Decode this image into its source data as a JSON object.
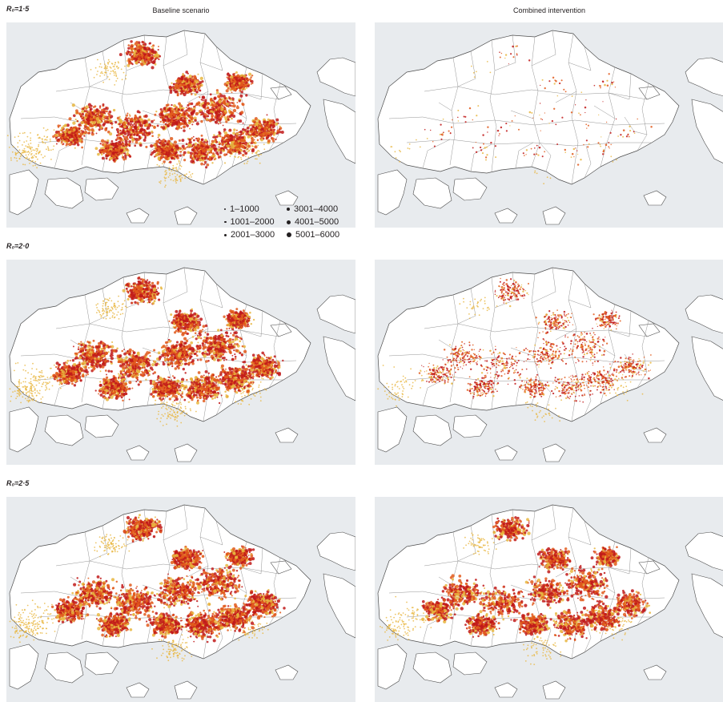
{
  "columns": {
    "baseline": "Baseline scenario",
    "combined": "Combined intervention"
  },
  "rows": [
    {
      "label": "R₀=1·5"
    },
    {
      "label": "R₀=2·0"
    },
    {
      "label": "R₀=2·5"
    }
  ],
  "legend": {
    "items": [
      {
        "label": "1–1000",
        "dot": 2
      },
      {
        "label": "3001–4000",
        "dot": 4
      },
      {
        "label": "1001–2000",
        "dot": 2.5
      },
      {
        "label": "4001–5000",
        "dot": 5
      },
      {
        "label": "2001–3000",
        "dot": 3
      },
      {
        "label": "5001–6000",
        "dot": 6
      }
    ]
  },
  "colors": {
    "land": "#ffffff",
    "sea": "#e8ebee",
    "border": "#4d4d4d",
    "low": "#e8b640",
    "mid": "#e25a1c",
    "high": "#c11a1a"
  }
}
